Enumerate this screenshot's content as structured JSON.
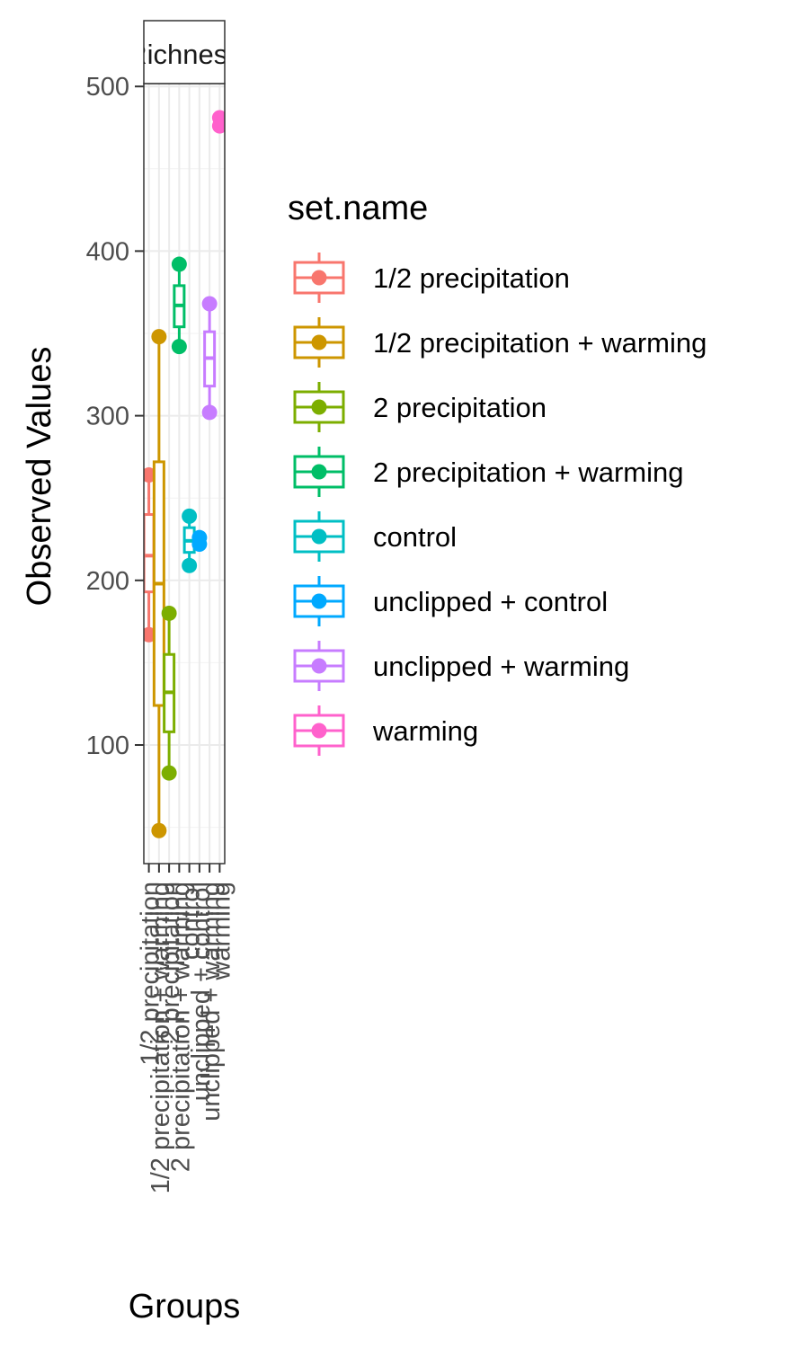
{
  "chart_data": {
    "type": "boxplot",
    "facet_label": "Richness",
    "xlabel": "Groups",
    "ylabel": "Observed Values",
    "ylim": [
      40,
      520
    ],
    "y_ticks": [
      100,
      200,
      300,
      400,
      500
    ],
    "legend": {
      "title": "set.name",
      "position": "right"
    },
    "series": [
      {
        "name": "1/2 precipitation",
        "color": "#F8766D",
        "points": [
          264,
          167
        ],
        "box": {
          "min": 167,
          "q1": 193,
          "median": 215,
          "q3": 240,
          "max": 264
        }
      },
      {
        "name": "1/2 precipitation + warming",
        "color": "#CD9600",
        "points": [
          348,
          48
        ],
        "box": {
          "min": 48,
          "q1": 124,
          "median": 198,
          "q3": 272,
          "max": 348
        }
      },
      {
        "name": "2 precipitation",
        "color": "#7CAE00",
        "points": [
          180,
          83
        ],
        "box": {
          "min": 83,
          "q1": 108,
          "median": 132,
          "q3": 155,
          "max": 180
        }
      },
      {
        "name": "2 precipitation + warming",
        "color": "#00BE67",
        "points": [
          392,
          342
        ],
        "box": {
          "min": 342,
          "q1": 354,
          "median": 367,
          "q3": 379,
          "max": 392
        }
      },
      {
        "name": "control",
        "color": "#00BFC4",
        "points": [
          239,
          209
        ],
        "box": {
          "min": 209,
          "q1": 217,
          "median": 224,
          "q3": 232,
          "max": 239
        }
      },
      {
        "name": "unclipped + control",
        "color": "#00A9FF",
        "points": [
          226,
          222
        ],
        "box": {
          "min": 222,
          "q1": 223,
          "median": 224,
          "q3": 225,
          "max": 226
        }
      },
      {
        "name": "unclipped + warming",
        "color": "#C77CFF",
        "points": [
          368,
          302
        ],
        "box": {
          "min": 302,
          "q1": 318,
          "median": 335,
          "q3": 351,
          "max": 368
        }
      },
      {
        "name": "warming",
        "color": "#FF61CC",
        "points": [
          481,
          476
        ],
        "box": {
          "min": 476,
          "q1": 477,
          "median": 478,
          "q3": 480,
          "max": 481
        }
      }
    ]
  }
}
